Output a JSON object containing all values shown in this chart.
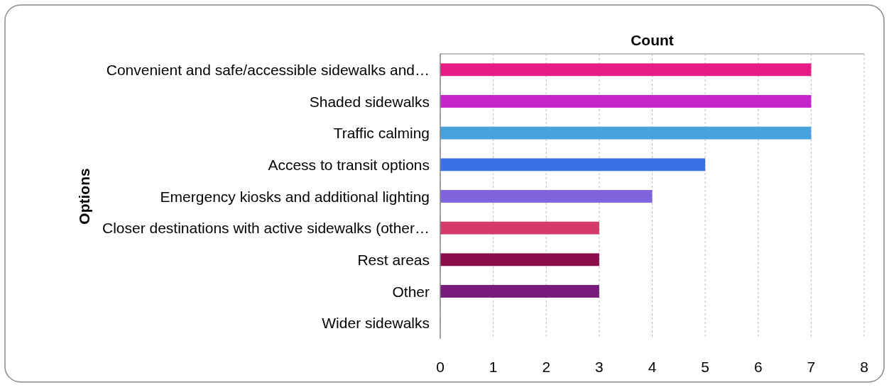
{
  "chart_data": {
    "type": "bar",
    "orientation": "horizontal",
    "title": "Count",
    "ylabel": "Options",
    "categories": [
      "Convenient and safe/accessible sidewalks and…",
      "Shaded sidewalks",
      "Traffic calming",
      "Access to transit options",
      "Emergency kiosks and additional lighting",
      "Closer destinations with active sidewalks (other…",
      "Rest areas",
      "Other",
      "Wider sidewalks"
    ],
    "values": [
      7,
      7,
      7,
      5,
      4,
      3,
      3,
      3,
      0
    ],
    "colors": [
      "#e31c86",
      "#c626c9",
      "#48a2de",
      "#3a70e8",
      "#7f64de",
      "#d63a68",
      "#8c0c4c",
      "#791a7d",
      null
    ],
    "xlim": [
      0,
      8
    ],
    "xticks": [
      0,
      1,
      2,
      3,
      4,
      5,
      6,
      7,
      8
    ],
    "grid": "x"
  }
}
